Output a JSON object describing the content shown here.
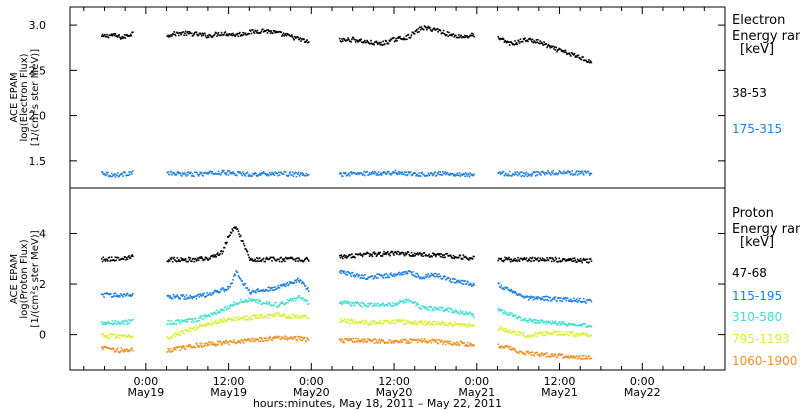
{
  "chart_data": [
    {
      "type": "scatter",
      "panel": "electron",
      "ylabel_lines": [
        "ACE EPAM",
        "log(Electron Flux)",
        "[1/(cm²s ster MeV)]"
      ],
      "ylim": [
        1.2,
        3.2
      ],
      "yticks": [
        "1.5",
        "2.0",
        "2.5",
        "3.0"
      ],
      "legend_title": [
        "Electron",
        "Energy ran",
        "[keV]"
      ],
      "series": [
        {
          "name": "38-53",
          "color": "#000000",
          "segments": [
            {
              "x": [
                -6.5,
                -5,
                -3.5,
                -2
              ],
              "y": [
                2.88,
                2.9,
                2.87,
                2.92
              ]
            },
            {
              "x": [
                3,
                5,
                7,
                9,
                11,
                13,
                15,
                17,
                19,
                21,
                23.5
              ],
              "y": [
                2.9,
                2.92,
                2.91,
                2.89,
                2.92,
                2.9,
                2.93,
                2.95,
                2.92,
                2.88,
                2.82
              ]
            },
            {
              "x": [
                28,
                30,
                32,
                34,
                36,
                38,
                40,
                42,
                44,
                46,
                47.5
              ],
              "y": [
                2.84,
                2.85,
                2.82,
                2.8,
                2.85,
                2.88,
                2.98,
                2.96,
                2.9,
                2.88,
                2.9
              ]
            },
            {
              "x": [
                51,
                53,
                55,
                57,
                59,
                61,
                63,
                64.5
              ],
              "y": [
                2.86,
                2.8,
                2.85,
                2.82,
                2.75,
                2.7,
                2.65,
                2.6
              ]
            }
          ]
        },
        {
          "name": "175-315",
          "color": "#1e80e0",
          "segments": [
            {
              "x": [
                -6.5,
                -5,
                -3.5,
                -2
              ],
              "y": [
                1.38,
                1.35,
                1.36,
                1.38
              ]
            },
            {
              "x": [
                3,
                7,
                11,
                15,
                19,
                23.5
              ],
              "y": [
                1.37,
                1.36,
                1.38,
                1.36,
                1.37,
                1.35
              ]
            },
            {
              "x": [
                28,
                32,
                36,
                40,
                44,
                47.5
              ],
              "y": [
                1.36,
                1.37,
                1.38,
                1.36,
                1.37,
                1.35
              ]
            },
            {
              "x": [
                51,
                55,
                59,
                64.5
              ],
              "y": [
                1.37,
                1.36,
                1.38,
                1.37
              ]
            }
          ]
        }
      ]
    },
    {
      "type": "scatter",
      "panel": "proton",
      "ylabel_lines": [
        "ACE EPAM",
        "log(Proton Flux)",
        "[1/(cm²s ster MeV)]"
      ],
      "ylim": [
        -1.4,
        5.8
      ],
      "yticks": [
        "0",
        "2",
        "4"
      ],
      "legend_title": [
        "Proton",
        "Energy ran",
        "[keV]"
      ],
      "series": [
        {
          "name": "47-68",
          "color": "#000000",
          "segments": [
            {
              "x": [
                -6.5,
                -4,
                -2
              ],
              "y": [
                3.0,
                3.05,
                3.1
              ]
            },
            {
              "x": [
                3,
                7,
                9,
                11,
                12,
                13,
                15,
                19,
                23.5
              ],
              "y": [
                3.0,
                3.0,
                3.05,
                3.3,
                4.0,
                4.3,
                3.0,
                3.0,
                3.0
              ]
            },
            {
              "x": [
                28,
                32,
                36,
                40,
                44,
                47.5
              ],
              "y": [
                3.1,
                3.2,
                3.25,
                3.2,
                3.15,
                3.05
              ]
            },
            {
              "x": [
                51,
                55,
                59,
                64.5
              ],
              "y": [
                3.0,
                3.0,
                3.0,
                2.95
              ]
            }
          ]
        },
        {
          "name": "115-195",
          "color": "#1e80e0",
          "segments": [
            {
              "x": [
                -6.5,
                -4,
                -2
              ],
              "y": [
                1.6,
                1.6,
                1.6
              ]
            },
            {
              "x": [
                3,
                7,
                10,
                12,
                13,
                15,
                19,
                22,
                23.5
              ],
              "y": [
                1.55,
                1.5,
                1.7,
                1.9,
                2.5,
                1.7,
                1.9,
                2.2,
                1.8
              ]
            },
            {
              "x": [
                28,
                32,
                36,
                38,
                40,
                42,
                44,
                47.5
              ],
              "y": [
                2.5,
                2.3,
                2.4,
                2.5,
                2.3,
                2.4,
                2.2,
                2.0
              ]
            },
            {
              "x": [
                51,
                55,
                59,
                64.5
              ],
              "y": [
                2.0,
                1.5,
                1.45,
                1.35
              ]
            }
          ]
        },
        {
          "name": "310-580",
          "color": "#40e0d0",
          "segments": [
            {
              "x": [
                -6.5,
                -4,
                -2
              ],
              "y": [
                0.5,
                0.5,
                0.55
              ]
            },
            {
              "x": [
                3,
                7,
                11,
                13,
                15,
                19,
                22,
                23.5
              ],
              "y": [
                0.5,
                0.6,
                1.0,
                1.3,
                1.4,
                1.2,
                1.5,
                1.3
              ]
            },
            {
              "x": [
                28,
                32,
                36,
                38,
                40,
                44,
                47.5
              ],
              "y": [
                1.3,
                1.2,
                1.25,
                1.4,
                1.1,
                1.0,
                0.8
              ]
            },
            {
              "x": [
                51,
                55,
                59,
                64.5
              ],
              "y": [
                1.0,
                0.6,
                0.5,
                0.35
              ]
            }
          ]
        },
        {
          "name": "795-1193",
          "color": "#d8f030",
          "segments": [
            {
              "x": [
                -6.5,
                -4,
                -2
              ],
              "y": [
                0.0,
                -0.05,
                0.0
              ]
            },
            {
              "x": [
                3,
                7,
                11,
                15,
                19,
                23.5
              ],
              "y": [
                -0.1,
                0.3,
                0.6,
                0.7,
                0.8,
                0.7
              ]
            },
            {
              "x": [
                28,
                32,
                36,
                40,
                44,
                47.5
              ],
              "y": [
                0.6,
                0.5,
                0.55,
                0.5,
                0.45,
                0.4
              ]
            },
            {
              "x": [
                51,
                55,
                59,
                64.5
              ],
              "y": [
                0.3,
                0.0,
                0.1,
                0.0
              ]
            }
          ]
        },
        {
          "name": "1060-1900",
          "color": "#f09020",
          "segments": [
            {
              "x": [
                -6.5,
                -4,
                -2
              ],
              "y": [
                -0.5,
                -0.6,
                -0.55
              ]
            },
            {
              "x": [
                3,
                7,
                11,
                15,
                19,
                23.5
              ],
              "y": [
                -0.6,
                -0.4,
                -0.3,
                -0.2,
                -0.1,
                -0.15
              ]
            },
            {
              "x": [
                28,
                32,
                36,
                40,
                44,
                47.5
              ],
              "y": [
                -0.2,
                -0.2,
                -0.25,
                -0.2,
                -0.3,
                -0.35
              ]
            },
            {
              "x": [
                51,
                55,
                59,
                64.5
              ],
              "y": [
                -0.4,
                -0.7,
                -0.8,
                -0.9
              ]
            }
          ]
        }
      ]
    }
  ],
  "xaxis": {
    "xlim": [
      -11,
      84
    ],
    "major_ticks": [
      0,
      12,
      24,
      36,
      48,
      60,
      72
    ],
    "tick_time_labels": [
      "0:00",
      "12:00",
      "0:00",
      "12:00",
      "0:00",
      "12:00",
      "0:00"
    ],
    "tick_date_labels": [
      "May19",
      "May19",
      "May20",
      "May20",
      "May21",
      "May21",
      "May22"
    ],
    "xlabel": "hours:minutes, May 18, 2011 – May 22, 2011"
  }
}
